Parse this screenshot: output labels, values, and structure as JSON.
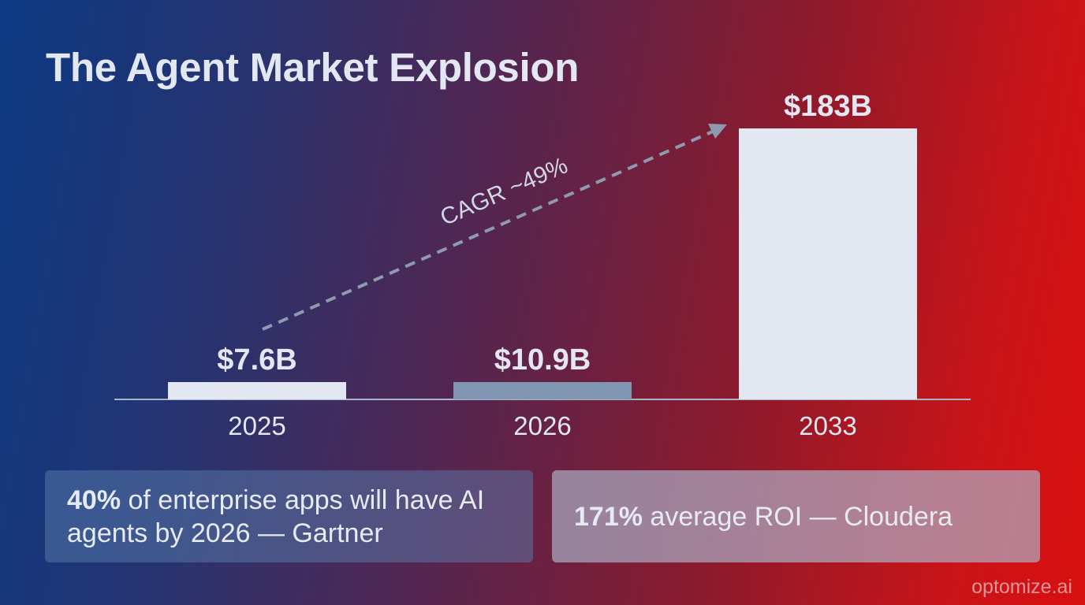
{
  "chart_data": {
    "type": "bar",
    "title": "The Agent Market Explosion",
    "categories": [
      "2025",
      "2026",
      "2033"
    ],
    "values": [
      7.6,
      10.9,
      183
    ],
    "value_labels": [
      "$7.6B",
      "$10.9B",
      "$183B"
    ],
    "bar_colors": [
      "#e2e7f1",
      "#8196b2",
      "#e2e7f1"
    ],
    "annotation": "CAGR ~49%",
    "ylim": [
      0,
      183
    ],
    "grid": false,
    "legend": "none"
  },
  "stats": {
    "left": {
      "highlight": "40%",
      "text": " of enterprise apps will have AI agents by 2026 — Gartner"
    },
    "right": {
      "highlight": "171%",
      "text": " average ROI — Cloudera"
    }
  },
  "brand": "optomize.ai",
  "colors": {
    "bar_light": "#e2e7f1",
    "bar_mid": "#8196b2",
    "axis": "#aab4c8",
    "arrow": "#8e9aae"
  }
}
